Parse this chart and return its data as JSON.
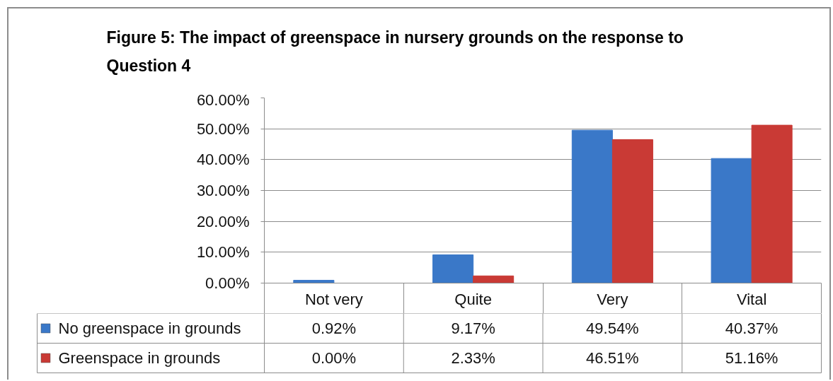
{
  "chart_data": {
    "type": "bar",
    "title": "Figure 5: The impact of greenspace in nursery grounds on the response to Question 4",
    "categories": [
      "Not very",
      "Quite",
      "Very",
      "Vital"
    ],
    "series": [
      {
        "name": "No greenspace in grounds",
        "color": "#3a78c8",
        "values": [
          0.92,
          9.17,
          49.54,
          40.37
        ],
        "value_labels": [
          "0.92%",
          "9.17%",
          "49.54%",
          "40.37%"
        ]
      },
      {
        "name": "Greenspace in grounds",
        "color": "#c93a35",
        "values": [
          0.0,
          2.33,
          46.51,
          51.16
        ],
        "value_labels": [
          "0.00%",
          "2.33%",
          "46.51%",
          "51.16%"
        ]
      }
    ],
    "ylim": [
      0,
      60
    ],
    "yticks": [
      {
        "value": 0,
        "label": "0.00%"
      },
      {
        "value": 10,
        "label": "10.00%"
      },
      {
        "value": 20,
        "label": "20.00%"
      },
      {
        "value": 30,
        "label": "30.00%"
      },
      {
        "value": 40,
        "label": "40.00%"
      },
      {
        "value": 50,
        "label": "50.00%"
      },
      {
        "value": 60,
        "label": "60.00%"
      }
    ],
    "grid": "y",
    "legend": "bottom"
  }
}
